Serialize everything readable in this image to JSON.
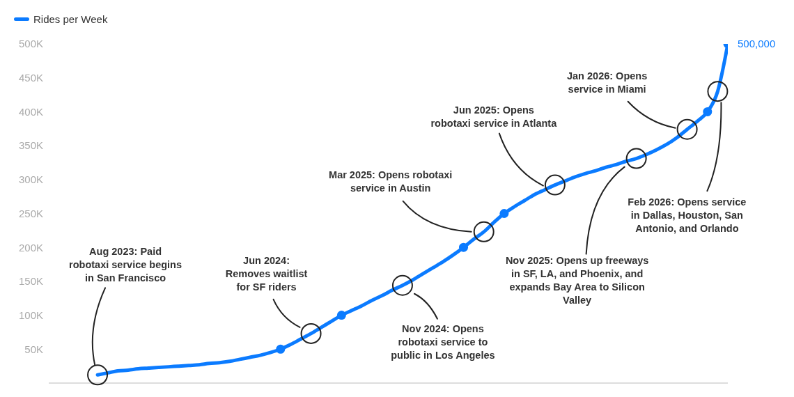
{
  "chart_data": {
    "type": "line",
    "legend": "top left",
    "tick_labels": "y",
    "categories": [
      null,
      null,
      null,
      null,
      null,
      null,
      null,
      null,
      null,
      null,
      null,
      null,
      null,
      null,
      null,
      null,
      null,
      null,
      null,
      null,
      null,
      null,
      null,
      null,
      null,
      null,
      null,
      null,
      null,
      null,
      null,
      null,
      null,
      null,
      null,
      null,
      null,
      null,
      null,
      null,
      null,
      null,
      null,
      null,
      null,
      null,
      null,
      null,
      null,
      null,
      null,
      null,
      null,
      null,
      null,
      null,
      null,
      null,
      null,
      null,
      null,
      null,
      null
    ],
    "ylim": [
      0,
      500000
    ],
    "yticks": [
      {
        "value": 50000,
        "label": "50K"
      },
      {
        "value": 100000,
        "label": "100K"
      },
      {
        "value": 150000,
        "label": "150K"
      },
      {
        "value": 200000,
        "label": "200K"
      },
      {
        "value": 250000,
        "label": "250K"
      },
      {
        "value": 300000,
        "label": "300K"
      },
      {
        "value": 350000,
        "label": "350K"
      },
      {
        "value": 400000,
        "label": "400K"
      },
      {
        "value": 450000,
        "label": "450K"
      },
      {
        "value": 500000,
        "label": "500K"
      }
    ],
    "series": [
      {
        "name": "Rides per Week",
        "color": "#0b7bff",
        "values": [
          12000,
          15000,
          18000,
          19000,
          21000,
          22000,
          23000,
          24000,
          25000,
          26000,
          27000,
          29000,
          30000,
          32000,
          35000,
          38000,
          41000,
          45000,
          50000,
          57000,
          65000,
          73000,
          82000,
          91000,
          100000,
          107000,
          114000,
          122000,
          129000,
          137000,
          144000,
          152000,
          161000,
          170000,
          179000,
          189000,
          200000,
          212000,
          223000,
          237000,
          250000,
          260000,
          269000,
          278000,
          285000,
          292000,
          298000,
          304000,
          309000,
          313000,
          318000,
          322000,
          327000,
          331000,
          337000,
          344000,
          352000,
          362000,
          374000,
          386000,
          400000,
          430000,
          500000
        ]
      },
      {
        "type": "scatter",
        "color": "#0b7bff",
        "marker": "circle",
        "values": [
          null,
          null,
          null,
          null,
          null,
          null,
          null,
          null,
          null,
          null,
          null,
          null,
          null,
          null,
          null,
          null,
          null,
          null,
          50000,
          null,
          null,
          null,
          null,
          null,
          100000,
          null,
          null,
          null,
          null,
          null,
          null,
          null,
          null,
          null,
          null,
          null,
          200000,
          null,
          null,
          null,
          250000,
          null,
          null,
          null,
          null,
          null,
          null,
          null,
          null,
          null,
          null,
          null,
          null,
          null,
          null,
          null,
          null,
          null,
          null,
          null,
          400000,
          null,
          500000
        ],
        "value_labels": [
          null,
          null,
          null,
          null,
          null,
          null,
          null,
          null,
          null,
          null,
          null,
          null,
          null,
          null,
          null,
          null,
          null,
          null,
          null,
          null,
          null,
          null,
          null,
          null,
          null,
          null,
          null,
          null,
          null,
          null,
          null,
          null,
          null,
          null,
          null,
          null,
          null,
          null,
          null,
          null,
          null,
          null,
          null,
          null,
          null,
          null,
          null,
          null,
          null,
          null,
          null,
          null,
          null,
          null,
          null,
          null,
          null,
          null,
          null,
          null,
          null,
          null,
          "500,000"
        ]
      }
    ],
    "annotations": [
      "Aug 2023: Paid robotaxi service begins in San Francisco",
      "Jun 2024: Removes waitlist for SF riders",
      "Nov 2024: Opens robotaxi service to public in Los Angeles",
      "Mar 2025: Opens robotaxi service in Austin",
      "Jun 2025: Opens robotaxi service in Atlanta",
      "Nov 2025: Opens up freeways in SF, LA, and Phoenix, and expands Bay Area to Silicon Valley",
      "Jan 2026: Opens service in Miami",
      "Feb 2026: Opens service in Dallas, Houston, San Antonio, and Orlando"
    ]
  }
}
